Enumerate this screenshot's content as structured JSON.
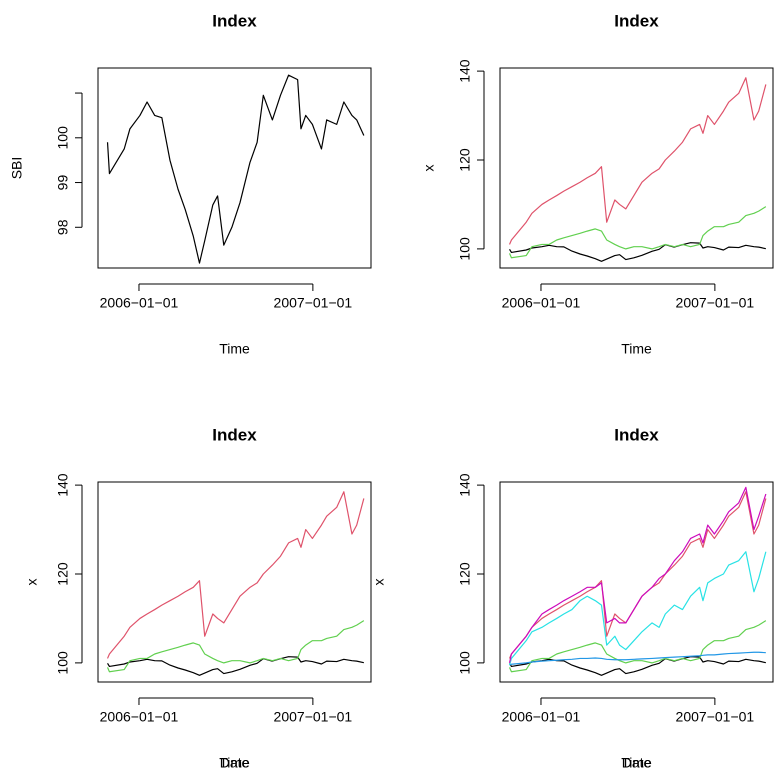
{
  "chart_data": [
    {
      "type": "line",
      "title": "Index",
      "xlabels": [
        "Time"
      ],
      "ylabel": "SBI",
      "x": [
        "2005-10-27",
        "2005-10-31",
        "2005-12-01",
        "2005-12-13",
        "2006-01-03",
        "2006-01-18",
        "2006-02-03",
        "2006-02-18",
        "2006-03-07",
        "2006-03-24",
        "2006-04-08",
        "2006-04-25",
        "2006-05-08",
        "2006-05-19",
        "2006-06-05",
        "2006-06-15",
        "2006-06-28",
        "2006-07-15",
        "2006-08-01",
        "2006-08-22",
        "2006-09-06",
        "2006-09-19",
        "2006-10-08",
        "2006-10-25",
        "2006-11-11",
        "2006-11-30",
        "2006-12-07",
        "2006-12-17",
        "2006-12-31",
        "2007-01-19",
        "2007-01-30",
        "2007-02-20",
        "2007-03-07",
        "2007-03-24",
        "2007-04-03",
        "2007-04-18"
      ],
      "xlim": [
        "2005-10-07",
        "2007-05-03"
      ],
      "xticks": [
        {
          "value": "2006-01-01",
          "label": "2006−01−01"
        },
        {
          "value": "2007-01-01",
          "label": "2007−01−01"
        }
      ],
      "ylim": [
        97.09,
        101.56
      ],
      "yticks": [
        98,
        99,
        100,
        {
          "value": 101,
          "label": null
        }
      ],
      "series": [
        {
          "color": "#000000",
          "values": [
            99.9,
            99.2,
            99.75,
            100.2,
            100.5,
            100.8,
            100.5,
            100.45,
            99.5,
            98.85,
            98.4,
            97.8,
            97.2,
            97.7,
            98.5,
            98.7,
            97.6,
            98.0,
            98.55,
            99.45,
            99.9,
            100.95,
            100.4,
            100.95,
            101.4,
            101.3,
            100.2,
            100.5,
            100.3,
            99.75,
            100.4,
            100.3,
            100.8,
            100.5,
            100.4,
            100.05
          ]
        }
      ]
    },
    {
      "type": "line",
      "title": "Index",
      "xlabels": [
        "Time"
      ],
      "ylabel": "x",
      "x": [
        "2005-10-27",
        "2005-10-31",
        "2005-12-01",
        "2005-12-13",
        "2006-01-03",
        "2006-01-18",
        "2006-02-03",
        "2006-02-18",
        "2006-03-07",
        "2006-03-24",
        "2006-04-08",
        "2006-04-25",
        "2006-05-08",
        "2006-05-19",
        "2006-06-05",
        "2006-06-15",
        "2006-06-28",
        "2006-07-15",
        "2006-08-01",
        "2006-08-22",
        "2006-09-06",
        "2006-09-19",
        "2006-10-08",
        "2006-10-25",
        "2006-11-11",
        "2006-11-30",
        "2006-12-07",
        "2006-12-17",
        "2006-12-31",
        "2007-01-19",
        "2007-01-30",
        "2007-02-20",
        "2007-03-07",
        "2007-03-24",
        "2007-04-03",
        "2007-04-18"
      ],
      "xlim": [
        "2005-10-07",
        "2007-05-03"
      ],
      "xticks": [
        {
          "value": "2006-01-01",
          "label": "2006−01−01"
        },
        {
          "value": "2007-01-01",
          "label": "2007−01−01"
        }
      ],
      "ylim": [
        95.7,
        140.7
      ],
      "yticks": [
        100,
        120,
        140
      ],
      "series": [
        {
          "color": "#000000",
          "values": [
            99.9,
            99.2,
            99.75,
            100.2,
            100.5,
            100.8,
            100.5,
            100.45,
            99.5,
            98.85,
            98.4,
            97.8,
            97.2,
            97.7,
            98.5,
            98.7,
            97.6,
            98.0,
            98.55,
            99.45,
            99.9,
            100.95,
            100.4,
            100.95,
            101.4,
            101.3,
            100.2,
            100.5,
            100.3,
            99.75,
            100.4,
            100.3,
            100.8,
            100.5,
            100.4,
            100.05
          ]
        },
        {
          "color": "#DF536B",
          "values": [
            101,
            102,
            106,
            108,
            110,
            111,
            112,
            113,
            114,
            115,
            116,
            117,
            118.5,
            106,
            111,
            110,
            109,
            112,
            115,
            117,
            118,
            120,
            122,
            124,
            127,
            128,
            126,
            130,
            128,
            131,
            133,
            135,
            138.5,
            129,
            131,
            137
          ]
        },
        {
          "color": "#61D04F",
          "values": [
            99,
            98,
            98.5,
            100.5,
            101,
            101,
            102,
            102.5,
            103,
            103.5,
            104,
            104.5,
            104,
            102,
            101,
            100.5,
            100,
            100.5,
            100.5,
            100,
            100.5,
            101,
            100.5,
            101,
            100.5,
            101,
            103,
            104,
            105,
            105,
            105.5,
            106,
            107.5,
            108,
            108.5,
            109.5
          ]
        }
      ]
    },
    {
      "type": "line",
      "title": "Index",
      "xlabels": [
        "Date",
        "Time"
      ],
      "ylabel": "x",
      "x": [
        "2005-10-27",
        "2005-10-31",
        "2005-12-01",
        "2005-12-13",
        "2006-01-03",
        "2006-01-18",
        "2006-02-03",
        "2006-02-18",
        "2006-03-07",
        "2006-03-24",
        "2006-04-08",
        "2006-04-25",
        "2006-05-08",
        "2006-05-19",
        "2006-06-05",
        "2006-06-15",
        "2006-06-28",
        "2006-07-15",
        "2006-08-01",
        "2006-08-22",
        "2006-09-06",
        "2006-09-19",
        "2006-10-08",
        "2006-10-25",
        "2006-11-11",
        "2006-11-30",
        "2006-12-07",
        "2006-12-17",
        "2006-12-31",
        "2007-01-19",
        "2007-01-30",
        "2007-02-20",
        "2007-03-07",
        "2007-03-24",
        "2007-04-03",
        "2007-04-18"
      ],
      "xlim": [
        "2005-10-07",
        "2007-05-03"
      ],
      "xticks": [
        {
          "value": "2006-01-01",
          "label": "2006−01−01"
        },
        {
          "value": "2007-01-01",
          "label": "2007−01−01"
        }
      ],
      "ylim": [
        95.7,
        140.7
      ],
      "yticks": [
        100,
        120,
        140
      ],
      "series": [
        {
          "color": "#000000",
          "values": [
            99.9,
            99.2,
            99.75,
            100.2,
            100.5,
            100.8,
            100.5,
            100.45,
            99.5,
            98.85,
            98.4,
            97.8,
            97.2,
            97.7,
            98.5,
            98.7,
            97.6,
            98.0,
            98.55,
            99.45,
            99.9,
            100.95,
            100.4,
            100.95,
            101.4,
            101.3,
            100.2,
            100.5,
            100.3,
            99.75,
            100.4,
            100.3,
            100.8,
            100.5,
            100.4,
            100.05
          ]
        },
        {
          "color": "#DF536B",
          "values": [
            101,
            102,
            106,
            108,
            110,
            111,
            112,
            113,
            114,
            115,
            116,
            117,
            118.5,
            106,
            111,
            110,
            109,
            112,
            115,
            117,
            118,
            120,
            122,
            124,
            127,
            128,
            126,
            130,
            128,
            131,
            133,
            135,
            138.5,
            129,
            131,
            137
          ]
        },
        {
          "color": "#61D04F",
          "values": [
            99,
            98,
            98.5,
            100.5,
            101,
            101,
            102,
            102.5,
            103,
            103.5,
            104,
            104.5,
            104,
            102,
            101,
            100.5,
            100,
            100.5,
            100.5,
            100,
            100.5,
            101,
            100.5,
            101,
            100.5,
            101,
            103,
            104,
            105,
            105,
            105.5,
            106,
            107.5,
            108,
            108.5,
            109.5
          ]
        }
      ]
    },
    {
      "type": "line",
      "title": "Index",
      "xlabels": [
        "Date",
        "Time"
      ],
      "ylabel": "x",
      "x": [
        "2005-10-27",
        "2005-10-31",
        "2005-12-01",
        "2005-12-13",
        "2006-01-03",
        "2006-01-18",
        "2006-02-03",
        "2006-02-18",
        "2006-03-07",
        "2006-03-24",
        "2006-04-08",
        "2006-04-25",
        "2006-05-08",
        "2006-05-19",
        "2006-06-05",
        "2006-06-15",
        "2006-06-28",
        "2006-07-15",
        "2006-08-01",
        "2006-08-22",
        "2006-09-06",
        "2006-09-19",
        "2006-10-08",
        "2006-10-25",
        "2006-11-11",
        "2006-11-30",
        "2006-12-07",
        "2006-12-17",
        "2006-12-31",
        "2007-01-19",
        "2007-01-30",
        "2007-02-20",
        "2007-03-07",
        "2007-03-24",
        "2007-04-03",
        "2007-04-18"
      ],
      "xlim": [
        "2005-10-07",
        "2007-05-03"
      ],
      "xticks": [
        {
          "value": "2006-01-01",
          "label": "2006−01−01"
        },
        {
          "value": "2007-01-01",
          "label": "2007−01−01"
        }
      ],
      "ylim": [
        95.7,
        140.7
      ],
      "yticks": [
        100,
        120,
        140
      ],
      "series": [
        {
          "color": "#000000",
          "values": [
            99.9,
            99.2,
            99.75,
            100.2,
            100.5,
            100.8,
            100.5,
            100.45,
            99.5,
            98.85,
            98.4,
            97.8,
            97.2,
            97.7,
            98.5,
            98.7,
            97.6,
            98.0,
            98.55,
            99.45,
            99.9,
            100.95,
            100.4,
            100.95,
            101.4,
            101.3,
            100.2,
            100.5,
            100.3,
            99.75,
            100.4,
            100.3,
            100.8,
            100.5,
            100.4,
            100.05
          ]
        },
        {
          "color": "#DF536B",
          "values": [
            101,
            102,
            106,
            108,
            110,
            111,
            112,
            113,
            114,
            115,
            116,
            117,
            118.5,
            106,
            111,
            110,
            109,
            112,
            115,
            117,
            118,
            120,
            122,
            124,
            127,
            128,
            126,
            130,
            128,
            131,
            133,
            135,
            138.5,
            129,
            131,
            137
          ]
        },
        {
          "color": "#61D04F",
          "values": [
            99,
            98,
            98.5,
            100.5,
            101,
            101,
            102,
            102.5,
            103,
            103.5,
            104,
            104.5,
            104,
            102,
            101,
            100.5,
            100,
            100.5,
            100.5,
            100,
            100.5,
            101,
            100.5,
            101,
            100.5,
            101,
            103,
            104,
            105,
            105,
            105.5,
            106,
            107.5,
            108,
            108.5,
            109.5
          ]
        },
        {
          "color": "#2297E6",
          "values": [
            99.5,
            99.7,
            100,
            100.2,
            100.4,
            100.5,
            100.6,
            100.7,
            100.8,
            101,
            101,
            101.1,
            101,
            100.8,
            100.7,
            100.7,
            100.7,
            100.8,
            100.9,
            101,
            101.1,
            101.2,
            101.3,
            101.4,
            101.5,
            101.6,
            101.7,
            101.8,
            101.8,
            102,
            102.1,
            102.2,
            102.3,
            102.4,
            102.4,
            102.3
          ]
        },
        {
          "color": "#28E2E5",
          "values": [
            99.5,
            101,
            105,
            107,
            108,
            109,
            110,
            111,
            112,
            114,
            115,
            114,
            113,
            104,
            106,
            104,
            103,
            105,
            107,
            109,
            108,
            111,
            113,
            112,
            115,
            117,
            114,
            118,
            119,
            120,
            122,
            123,
            125,
            116,
            119,
            125
          ]
        },
        {
          "color": "#CD0BBC",
          "values": [
            100,
            102,
            106,
            108,
            111,
            112,
            113,
            114,
            115,
            116,
            117,
            117,
            118,
            109,
            110,
            109,
            109,
            112,
            115,
            117,
            119,
            120,
            123,
            125,
            128,
            129,
            127,
            131,
            129,
            132,
            134,
            136,
            139.5,
            130,
            133,
            138
          ]
        }
      ]
    }
  ]
}
